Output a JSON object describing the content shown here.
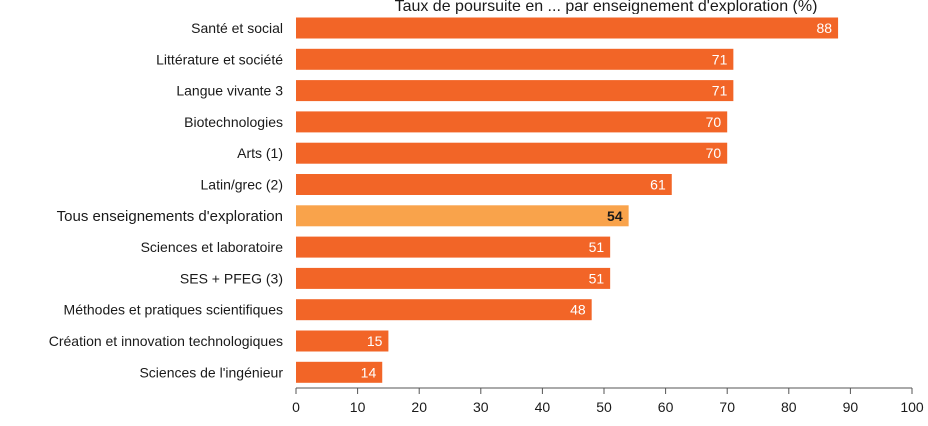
{
  "chart_data": {
    "type": "bar",
    "orientation": "horizontal",
    "title": "Taux de poursuite en ... par enseignement d'exploration (%)",
    "categories": [
      "Santé et social",
      "Littérature et société",
      "Langue vivante 3",
      "Biotechnologies",
      "Arts (1)",
      "Latin/grec (2)",
      "Tous enseignements d'exploration",
      "Sciences et laboratoire",
      "SES + PFEG (3)",
      "Méthodes et pratiques scientifiques",
      "Création et innovation technologiques",
      "Sciences de l'ingénieur"
    ],
    "values": [
      88,
      71,
      71,
      70,
      70,
      61,
      54,
      51,
      51,
      48,
      15,
      14
    ],
    "highlight_index": 6,
    "xlim": [
      0,
      100
    ],
    "xticks": [
      0,
      10,
      20,
      30,
      40,
      50,
      60,
      70,
      80,
      90,
      100
    ],
    "grid": false,
    "legend": "none",
    "colors": {
      "bar": "#f26527",
      "highlight": "#f9a34b",
      "label_on_bar": "#ffffff",
      "label_on_highlight": "#1a1a1a",
      "axis": "#555555",
      "text": "#1a1a1a"
    }
  }
}
